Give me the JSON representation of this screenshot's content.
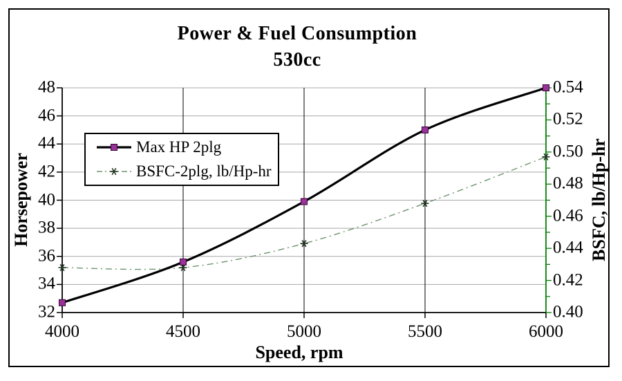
{
  "chart_data": {
    "type": "line",
    "title": "Power & Fuel Consumption",
    "subtitle": "530cc",
    "xlabel": "Speed, rpm",
    "ylabel_left": "Horsepower",
    "ylabel_right": "BSFC, lb/Hp-hr",
    "x": [
      4000,
      4500,
      5000,
      5500,
      6000
    ],
    "x_tick_labels": [
      "4000",
      "4500",
      "5000",
      "5500",
      "6000"
    ],
    "y_left": {
      "min": 32,
      "max": 48,
      "step": 2,
      "tick_values": [
        32,
        34,
        36,
        38,
        40,
        42,
        44,
        46,
        48
      ],
      "tick_labels": [
        "32",
        "34",
        "36",
        "38",
        "40",
        "42",
        "44",
        "46",
        "48"
      ]
    },
    "y_right": {
      "min": 0.4,
      "max": 0.54,
      "step": 0.02,
      "minor_step": 0.01,
      "tick_values": [
        0.4,
        0.42,
        0.44,
        0.46,
        0.48,
        0.5,
        0.52,
        0.54
      ],
      "tick_labels": [
        "0.40",
        "0.42",
        "0.44",
        "0.46",
        "0.48",
        "0.50",
        "0.52",
        "0.54"
      ]
    },
    "series": [
      {
        "name": "Max HP 2plg",
        "axis": "left",
        "values": [
          32.7,
          35.6,
          39.9,
          45.0,
          48.0
        ],
        "line_color": "#000000",
        "line_style": "solid",
        "line_width": 3.2,
        "marker": "square",
        "marker_fill": "#993399",
        "marker_edge": "#380038"
      },
      {
        "name": "BSFC-2plg, lb/Hp-hr",
        "axis": "right",
        "values": [
          0.428,
          0.428,
          0.443,
          0.468,
          0.497
        ],
        "line_color": "#6d936d",
        "line_style": "dash-dot",
        "line_width": 1.4,
        "marker": "asterisk",
        "marker_fill": "#223322",
        "marker_edge": "#223322"
      }
    ],
    "legend": {
      "position": "inside-upper-left",
      "entries": [
        "Max HP 2plg",
        "BSFC-2plg, lb/Hp-hr"
      ]
    },
    "grid": true,
    "colors": {
      "grid": "#a8a8a8",
      "axis": "#000000",
      "right_axis": "#008000",
      "text": "#000000",
      "background": "#ffffff"
    }
  }
}
